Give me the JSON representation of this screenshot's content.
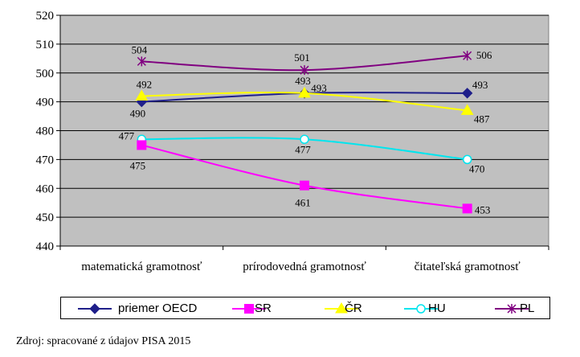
{
  "chart_data": {
    "type": "line",
    "categories": [
      "matematická gramotnosť",
      "prírodovedná gramotnosť",
      "čitateľská gramotnosť"
    ],
    "ylim": [
      440,
      520
    ],
    "yticks": [
      440,
      450,
      460,
      470,
      480,
      490,
      500,
      510,
      520
    ],
    "grid": true,
    "legend_position": "bottom",
    "series": [
      {
        "name": "priemer OECD",
        "values": [
          490,
          493,
          493
        ],
        "color": "#1f1f8a",
        "marker": "diamond"
      },
      {
        "name": "SR",
        "values": [
          475,
          461,
          453
        ],
        "color": "#ff00ff",
        "marker": "square"
      },
      {
        "name": "ČR",
        "values": [
          492,
          493,
          487
        ],
        "color": "#ffff00",
        "marker": "triangle"
      },
      {
        "name": "HU",
        "values": [
          477,
          477,
          470
        ],
        "color": "#00e5ee",
        "marker": "circle"
      },
      {
        "name": "PL",
        "values": [
          504,
          501,
          506
        ],
        "color": "#800080",
        "marker": "star"
      }
    ]
  },
  "source_note": "Zdroj: spracované z údajov PISA 2015",
  "colors": {
    "plot_background": "#c0c0c0",
    "gridline": "#000000"
  }
}
